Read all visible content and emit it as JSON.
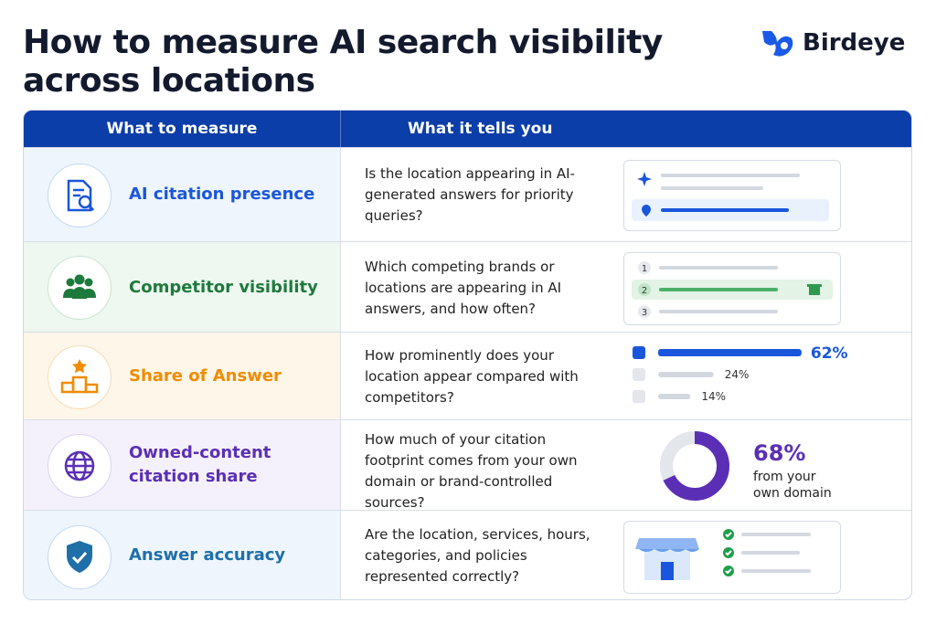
{
  "header": {
    "title": "How to measure AI search visibility across locations",
    "brand": "Birdeye"
  },
  "table": {
    "columns": [
      "What to measure",
      "What it tells you"
    ],
    "rows": [
      {
        "metric": "AI citation presence",
        "description": "Is the location appearing in AI-generated answers for priority queries?"
      },
      {
        "metric": "Competitor visibility",
        "description": "Which competing brands or locations are appearing in AI answers, and how often?",
        "ranks": [
          1,
          2,
          3
        ]
      },
      {
        "metric": "Share of Answer",
        "description": "How prominently does your location appear compared with competitors?",
        "shares": [
          {
            "value": 62,
            "label": "62%"
          },
          {
            "value": 24,
            "label": "24%"
          },
          {
            "value": 14,
            "label": "14%"
          }
        ]
      },
      {
        "metric": "Owned-content citation share",
        "description": "How much of your citation footprint comes from your own domain or brand-controlled sources?",
        "donut": {
          "value": 68,
          "label": "68%",
          "caption": "from your own domain"
        }
      },
      {
        "metric": "Answer accuracy",
        "description": "Are the location, services, hours, categories, and policies represented correctly?"
      }
    ]
  }
}
